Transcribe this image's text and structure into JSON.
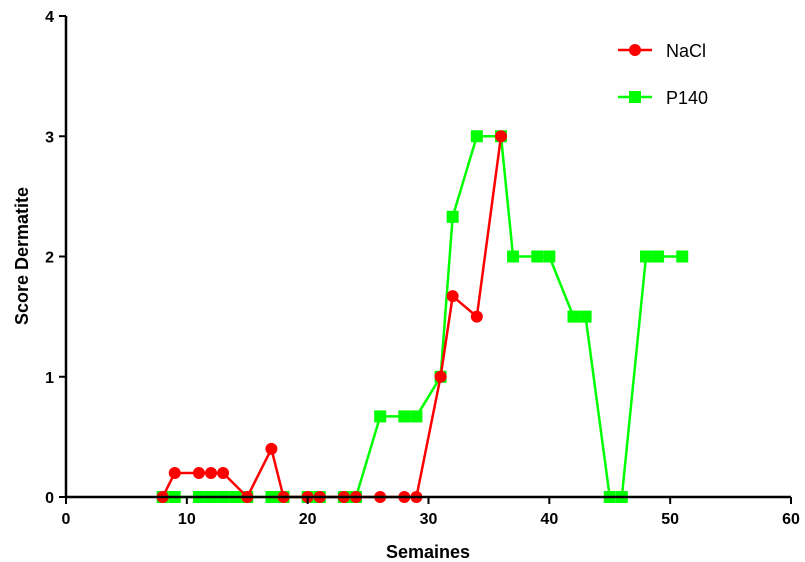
{
  "chart_data": {
    "type": "line",
    "title": "",
    "xlabel": "Semaines",
    "ylabel": "Score Dermatite",
    "xlim": [
      0,
      60
    ],
    "ylim": [
      0,
      4
    ],
    "xticks": [
      0,
      10,
      20,
      30,
      40,
      50,
      60
    ],
    "yticks": [
      0,
      1,
      2,
      3,
      4
    ],
    "grid": false,
    "legend_position": "top-right",
    "series": [
      {
        "name": "NaCl",
        "color": "#ff0000",
        "marker": "circle",
        "x": [
          8,
          9,
          11,
          12,
          13,
          15,
          17,
          18,
          20,
          21,
          23,
          24,
          26,
          28,
          29,
          31,
          32,
          34,
          36
        ],
        "y": [
          0,
          0.2,
          0.2,
          0.2,
          0.2,
          0,
          0.4,
          0,
          0,
          0,
          0,
          0,
          0,
          0,
          0,
          1,
          1.67,
          1.5,
          3
        ]
      },
      {
        "name": "P140",
        "color": "#00ff00",
        "marker": "square",
        "x": [
          8,
          9,
          11,
          12,
          13,
          14,
          15,
          17,
          18,
          20,
          21,
          23,
          24,
          26,
          28,
          29,
          31,
          32,
          34,
          36,
          37,
          39,
          40,
          42,
          43,
          45,
          46,
          48,
          49,
          51
        ],
        "y": [
          0,
          0,
          0,
          0,
          0,
          0,
          0,
          0,
          0,
          0,
          0,
          0,
          0,
          0.67,
          0.67,
          0.67,
          1,
          2.33,
          3,
          3,
          2,
          2,
          2,
          1.5,
          1.5,
          0,
          0,
          2,
          2,
          2
        ]
      }
    ]
  }
}
